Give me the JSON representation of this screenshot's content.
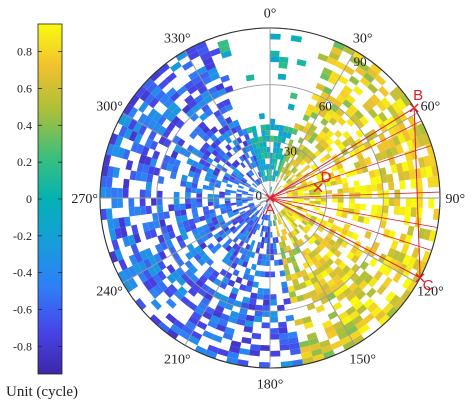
{
  "chart_data": {
    "type": "heatmap",
    "subtype": "polar",
    "theta_direction": "clockwise",
    "theta_zero": "top",
    "theta_ticks": [
      "0°",
      "30°",
      "60°",
      "90°",
      "120°",
      "150°",
      "180°",
      "210°",
      "240°",
      "270°",
      "300°",
      "330°"
    ],
    "r_ticks": [
      "0",
      "30",
      "60",
      "90"
    ],
    "r_max": 90,
    "colorbar": {
      "label": "Unit (cycle)",
      "range": [
        -0.95,
        0.95
      ],
      "ticks": [
        "0.8",
        "0.6",
        "0.4",
        "0.2",
        "0",
        "-0.2",
        "-0.4",
        "-0.6",
        "-0.8"
      ],
      "colormap": "parula"
    },
    "points": [
      {
        "name": "A",
        "azimuth": 0,
        "r": 0
      },
      {
        "name": "B",
        "azimuth": 58,
        "r": 90
      },
      {
        "name": "C",
        "azimuth": 118,
        "r": 90
      },
      {
        "name": "D",
        "azimuth": 78,
        "r": 26
      }
    ],
    "tracks": [
      {
        "from_az": 330,
        "to_az": 5,
        "level": 0.1
      },
      {
        "from_az": 30,
        "to_az": 35,
        "level": 0.8
      },
      {
        "from_az": 62,
        "to_az": 75,
        "level": 0.75
      },
      {
        "from_az": 120,
        "to_az": 160,
        "level": 0.55
      },
      {
        "from_az": 175,
        "to_az": 200,
        "level": -0.55
      },
      {
        "from_az": 205,
        "to_az": 240,
        "level": -0.65
      },
      {
        "from_az": 250,
        "to_az": 320,
        "level": -0.5
      }
    ]
  },
  "colors": {
    "point_marker": "#e0202a",
    "grid": "#9a9a9a",
    "axis": "#333333"
  }
}
